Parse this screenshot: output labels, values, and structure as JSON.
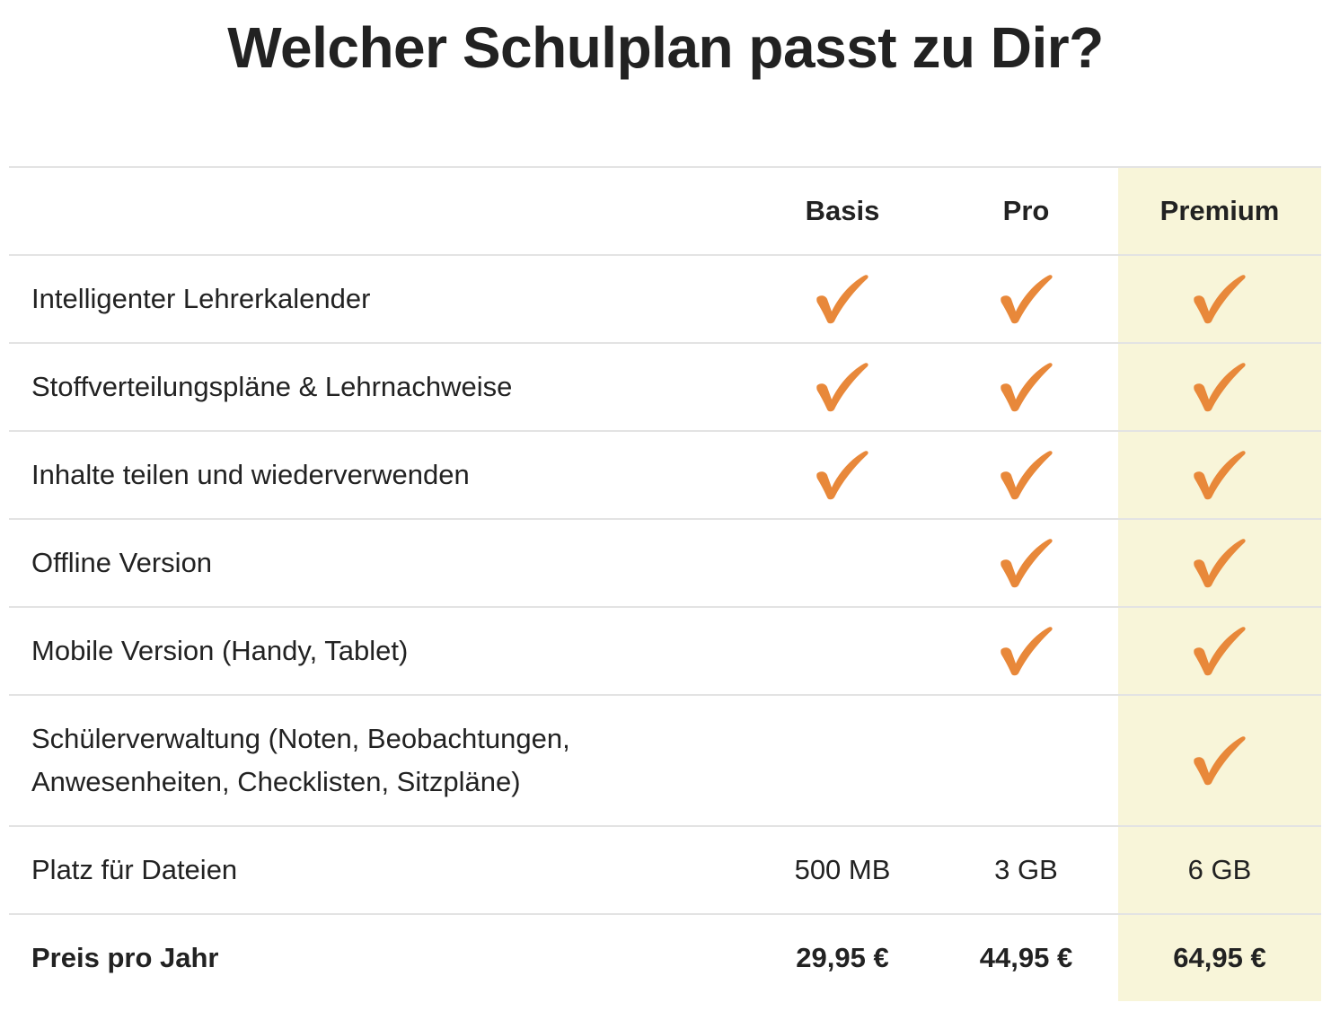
{
  "title": "Welcher Schulplan passt zu Dir?",
  "plans": [
    {
      "name": "Basis"
    },
    {
      "name": "Pro"
    },
    {
      "name": "Premium",
      "highlighted": true
    }
  ],
  "features": [
    {
      "label": "Intelligenter Lehrerkalender",
      "basis": true,
      "pro": true,
      "premium": true
    },
    {
      "label": "Stoffverteilungspläne & Lehrnachweise",
      "basis": true,
      "pro": true,
      "premium": true
    },
    {
      "label": "Inhalte teilen und wiederverwenden",
      "basis": true,
      "pro": true,
      "premium": true
    },
    {
      "label": "Offline Version",
      "basis": false,
      "pro": true,
      "premium": true
    },
    {
      "label": "Mobile Version (Handy, Tablet)",
      "basis": false,
      "pro": true,
      "premium": true
    },
    {
      "label_line1": "Schülerverwaltung (Noten, Beobachtungen,",
      "label_line2": "Anwesenheiten, Checklisten, Sitzpläne)",
      "basis": false,
      "pro": false,
      "premium": true
    }
  ],
  "storage": {
    "label": "Platz für Dateien",
    "basis": "500 MB",
    "pro": "3 GB",
    "premium": "6 GB"
  },
  "price": {
    "label": "Preis pro Jahr",
    "basis": "29,95 €",
    "pro": "44,95 €",
    "premium": "64,95 €"
  },
  "icons": {
    "check": "checkmark-icon"
  },
  "colors": {
    "check": "#e8883a",
    "premium_highlight": "#f8f5d9",
    "text": "#222222",
    "divider": "#e3e3e3"
  }
}
